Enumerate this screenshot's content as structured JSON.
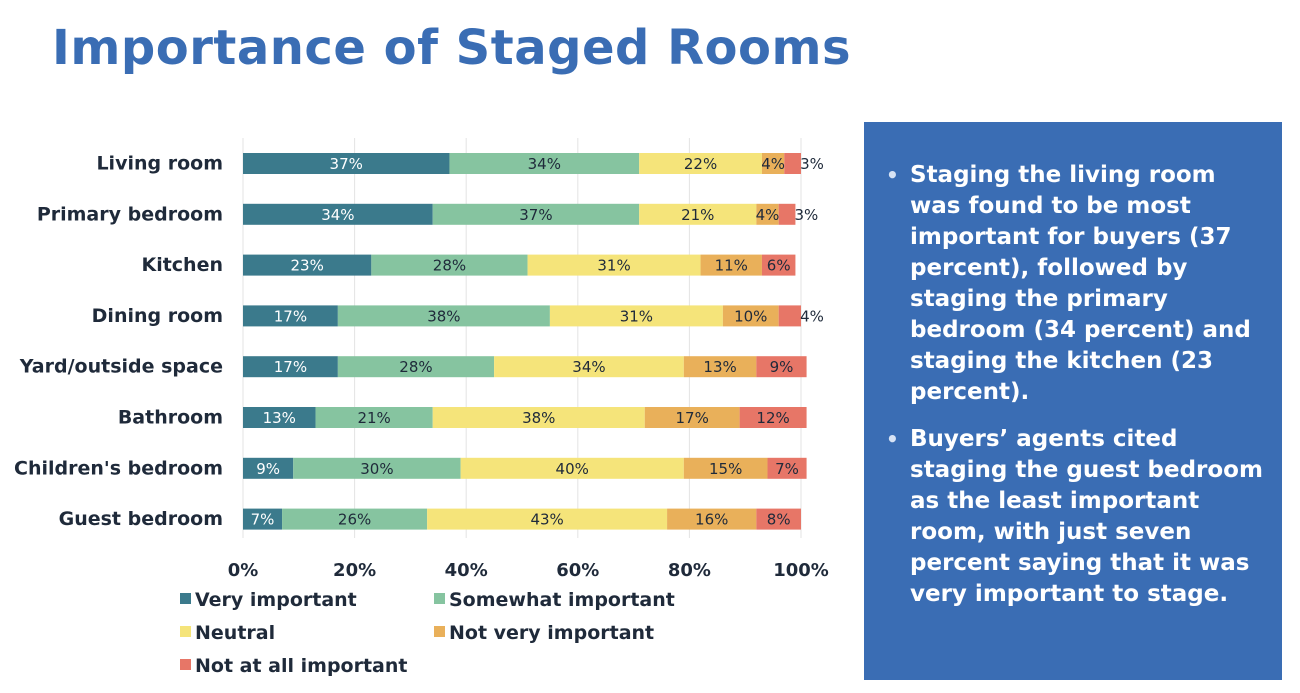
{
  "title": "Importance of Staged Rooms",
  "summary": {
    "bullets": [
      "Staging the living room was found to be most important for buyers (37 percent), followed by staging the primary bedroom (34 percent) and staging the kitchen (23 percent).",
      "Buyers’ agents cited staging the guest bedroom as the least important room, with just seven percent saying that it was very important to stage."
    ]
  },
  "chart_data": {
    "type": "bar",
    "orientation": "horizontal",
    "stacked": true,
    "title": "",
    "xlabel": "",
    "ylabel": "",
    "xlim": [
      0,
      100
    ],
    "x_ticks": [
      "0%",
      "20%",
      "40%",
      "60%",
      "80%",
      "100%"
    ],
    "grid": true,
    "legend_position": "bottom",
    "categories": [
      "Living room",
      "Primary bedroom",
      "Kitchen",
      "Dining room",
      "Yard/outside space",
      "Bathroom",
      "Children's bedroom",
      "Guest bedroom"
    ],
    "series": [
      {
        "name": "Very important",
        "color": "#3b7a8c",
        "values": [
          37,
          34,
          23,
          17,
          17,
          13,
          9,
          7
        ]
      },
      {
        "name": "Somewhat important",
        "color": "#86c4a0",
        "values": [
          34,
          37,
          28,
          38,
          28,
          21,
          30,
          26
        ]
      },
      {
        "name": "Neutral",
        "color": "#f5e47a",
        "values": [
          22,
          21,
          31,
          31,
          34,
          38,
          40,
          43
        ]
      },
      {
        "name": "Not very important",
        "color": "#e9b05a",
        "values": [
          4,
          4,
          11,
          10,
          13,
          17,
          15,
          16
        ]
      },
      {
        "name": "Not at all important",
        "color": "#e77667",
        "values": [
          3,
          3,
          6,
          4,
          9,
          12,
          7,
          8
        ]
      }
    ]
  }
}
